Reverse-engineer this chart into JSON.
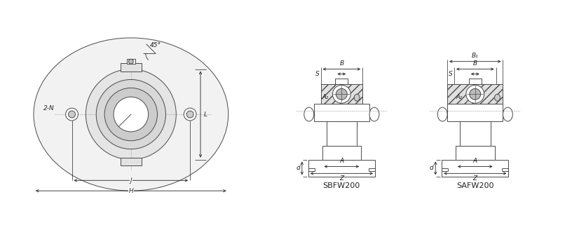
{
  "bg_color": "#ffffff",
  "line_color": "#4a4a4a",
  "dark_line": "#222222",
  "label_45": "45°",
  "label_2N": "2-N",
  "label_J": "J",
  "label_H": "H",
  "label_L": "L",
  "label_d": "d",
  "label_B": "B",
  "label_B1": "B₁",
  "label_S": "S",
  "label_A2": "A₂",
  "label_A": "A",
  "label_Z": "Z",
  "title_sbfw": "SBFW200",
  "title_safw": "SAFW200"
}
